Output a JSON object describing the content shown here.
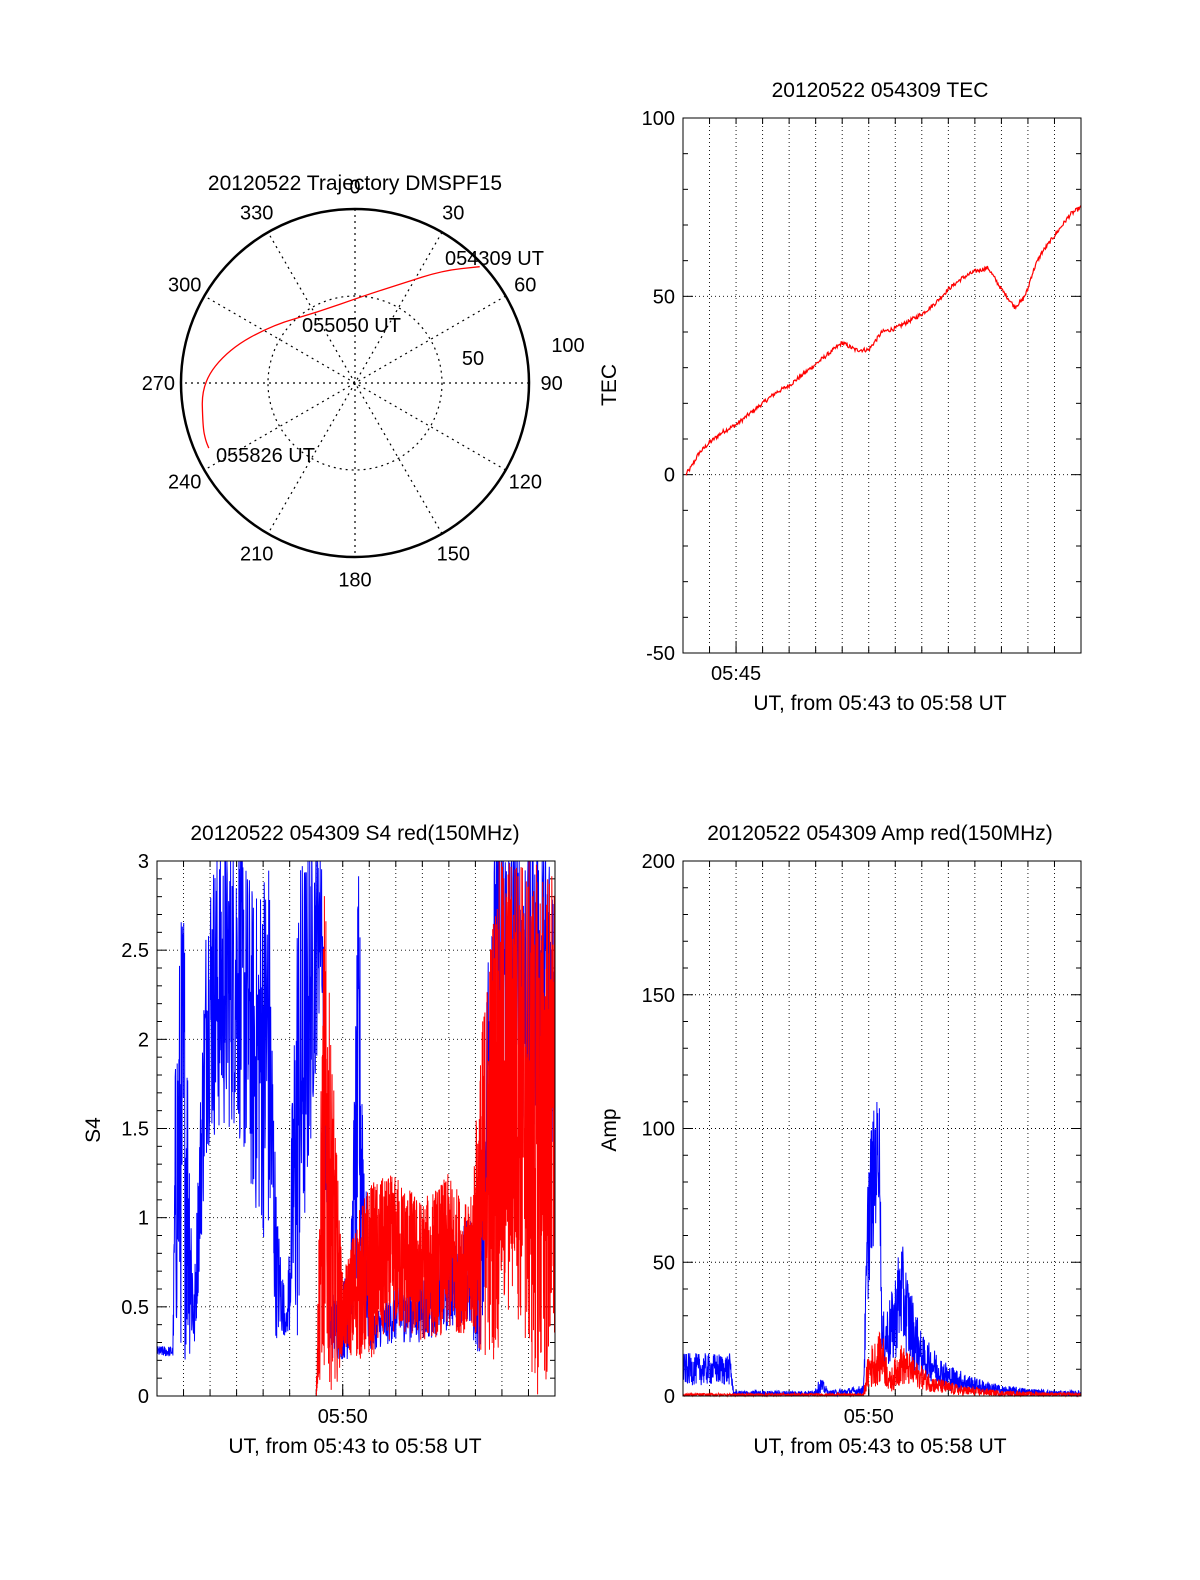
{
  "colors": {
    "red": "#ff0000",
    "blue": "#0000ff",
    "axis": "#000000",
    "grid": "#000000"
  },
  "chart_data": [
    {
      "id": "trajectory",
      "type": "polar",
      "title": "20120522 Trajectory DMSPF15",
      "azimuth_labels": [
        "0",
        "30",
        "60",
        "90",
        "120",
        "150",
        "180",
        "210",
        "240",
        "270",
        "300",
        "330"
      ],
      "radial_ticks": [
        {
          "label": "50",
          "value": 50
        },
        {
          "label": "100",
          "value": 100
        }
      ],
      "track": {
        "color": "#ff0000",
        "points": [
          {
            "az": 47,
            "r": 98
          },
          {
            "az": 38,
            "r": 82
          },
          {
            "az": 25,
            "r": 63
          },
          {
            "az": 5,
            "r": 50
          },
          {
            "az": -28,
            "r": 46
          },
          {
            "az": -55,
            "r": 58
          },
          {
            "az": -75,
            "r": 75
          },
          {
            "az": -90,
            "r": 88
          },
          {
            "az": -106,
            "r": 91
          },
          {
            "az": -111,
            "r": 92
          },
          {
            "az": -114,
            "r": 92
          }
        ]
      },
      "annotations": [
        {
          "label": "054309 UT",
          "az": 47,
          "r": 98
        },
        {
          "label": "055050 UT",
          "az": -30,
          "r": 46
        },
        {
          "label": "055826 UT",
          "az": -112,
          "r": 92
        }
      ]
    },
    {
      "id": "tec",
      "type": "line",
      "title": "20120522 054309 TEC",
      "ylabel": "TEC",
      "xlabel": "UT, from 05:43 to 05:58 UT",
      "xlim": [
        43.0,
        58.0
      ],
      "ylim": [
        -50,
        100
      ],
      "yticks": [
        -50,
        0,
        50,
        100
      ],
      "xticks": [
        {
          "label": "05:45",
          "value": 45
        }
      ],
      "series": [
        {
          "color": "#ff0000",
          "x": [
            43.1,
            43.3,
            43.6,
            44.0,
            44.5,
            45.0,
            45.5,
            46.0,
            46.5,
            47.0,
            47.5,
            48.0,
            48.5,
            49.0,
            49.5,
            50.0,
            50.5,
            51.0,
            51.5,
            52.0,
            52.5,
            53.0,
            53.5,
            54.0,
            54.5,
            55.0,
            55.5,
            55.8,
            56.0,
            56.1,
            56.3,
            56.5,
            56.7,
            57.0,
            57.3,
            57.6,
            58.0
          ],
          "y": [
            0,
            2,
            6,
            9,
            12,
            14,
            17,
            20,
            23,
            25,
            28,
            31,
            34,
            37,
            35,
            35,
            40,
            41,
            43,
            45,
            48,
            52,
            55,
            57,
            58,
            52,
            47,
            49,
            52,
            55,
            59,
            62,
            64,
            67,
            70,
            73,
            75
          ]
        }
      ]
    },
    {
      "id": "s4",
      "type": "line",
      "title": "20120522 054309 S4 red(150MHz)",
      "ylabel": "S4",
      "xlabel": "UT, from 05:43 to 05:58 UT",
      "xlim": [
        43.0,
        58.0
      ],
      "ylim": [
        0,
        3
      ],
      "yticks": [
        {
          "label": "0",
          "value": 0
        },
        {
          "label": "0.5",
          "value": 0.5
        },
        {
          "label": "1",
          "value": 1
        },
        {
          "label": "1.5",
          "value": 1.5
        },
        {
          "label": "2",
          "value": 2
        },
        {
          "label": "2.5",
          "value": 2.5
        },
        {
          "label": "3",
          "value": 3
        }
      ],
      "xticks": [
        {
          "label": "05:50",
          "value": 50
        }
      ],
      "series": [
        {
          "color": "#0000ff",
          "profile": [
            [
              43.0,
              0.25,
              0.03
            ],
            [
              43.6,
              0.25,
              0.03
            ],
            [
              43.7,
              1.2,
              0.9
            ],
            [
              44.0,
              1.6,
              1.4
            ],
            [
              44.4,
              0.4,
              0.2
            ],
            [
              44.9,
              2.2,
              0.8
            ],
            [
              46.0,
              2.4,
              0.9
            ],
            [
              46.7,
              1.9,
              0.9
            ],
            [
              47.2,
              2.0,
              1.2
            ],
            [
              47.5,
              0.7,
              0.4
            ],
            [
              47.9,
              0.4,
              0.05
            ],
            [
              48.3,
              1.6,
              1.4
            ],
            [
              48.8,
              2.3,
              0.9
            ],
            [
              49.2,
              2.8,
              0.5
            ],
            [
              49.5,
              0.4,
              0.2
            ],
            [
              49.9,
              0.4,
              0.2
            ],
            [
              50.3,
              0.5,
              0.3
            ],
            [
              50.6,
              1.8,
              1.2
            ],
            [
              51.0,
              0.35,
              0.1
            ],
            [
              52.0,
              0.45,
              0.15
            ],
            [
              53.0,
              0.5,
              0.2
            ],
            [
              53.8,
              0.6,
              0.25
            ],
            [
              54.6,
              0.7,
              0.3
            ],
            [
              55.2,
              0.6,
              0.4
            ],
            [
              55.6,
              2.4,
              1.0
            ],
            [
              56.5,
              2.3,
              1.0
            ],
            [
              57.2,
              2.3,
              0.9
            ],
            [
              58.0,
              2.3,
              0.9
            ]
          ]
        },
        {
          "color": "#ff0000",
          "profile": [
            [
              49.0,
              0.0,
              0.0
            ],
            [
              49.3,
              1.5,
              1.4
            ],
            [
              49.7,
              0.8,
              0.8
            ],
            [
              50.0,
              0.45,
              0.2
            ],
            [
              50.5,
              0.6,
              0.4
            ],
            [
              51.0,
              0.7,
              0.5
            ],
            [
              52.0,
              0.8,
              0.45
            ],
            [
              53.0,
              0.7,
              0.4
            ],
            [
              54.0,
              0.8,
              0.45
            ],
            [
              54.8,
              0.7,
              0.35
            ],
            [
              55.3,
              1.2,
              1.0
            ],
            [
              55.8,
              1.6,
              1.4
            ],
            [
              56.5,
              1.8,
              1.3
            ],
            [
              57.2,
              1.5,
              1.5
            ],
            [
              58.0,
              1.5,
              1.5
            ]
          ]
        }
      ]
    },
    {
      "id": "amp",
      "type": "line",
      "title": "20120522 054309 Amp red(150MHz)",
      "ylabel": "Amp",
      "xlabel": "UT, from 05:43 to 05:58 UT",
      "xlim": [
        43.0,
        58.0
      ],
      "ylim": [
        0,
        200
      ],
      "yticks": [
        0,
        50,
        100,
        150,
        200
      ],
      "xticks": [
        {
          "label": "05:50",
          "value": 50
        }
      ],
      "series": [
        {
          "color": "#0000ff",
          "profile": [
            [
              43.0,
              10,
              6
            ],
            [
              44.8,
              10,
              6
            ],
            [
              44.9,
              1,
              1
            ],
            [
              47.9,
              1,
              1
            ],
            [
              48.2,
              4,
              3
            ],
            [
              48.5,
              1,
              1
            ],
            [
              49.8,
              2,
              2
            ],
            [
              50.0,
              70,
              30
            ],
            [
              50.4,
              95,
              20
            ],
            [
              50.5,
              20,
              10
            ],
            [
              50.9,
              25,
              15
            ],
            [
              51.2,
              40,
              20
            ],
            [
              51.6,
              25,
              15
            ],
            [
              52.0,
              15,
              8
            ],
            [
              53.0,
              7,
              5
            ],
            [
              54.0,
              4,
              3
            ],
            [
              55.0,
              2,
              2
            ],
            [
              57.0,
              1,
              1
            ],
            [
              58.0,
              1,
              1
            ]
          ]
        },
        {
          "color": "#ff0000",
          "profile": [
            [
              43.0,
              0.5,
              0.5
            ],
            [
              49.8,
              0.5,
              0.5
            ],
            [
              50.0,
              10,
              8
            ],
            [
              50.5,
              15,
              10
            ],
            [
              50.8,
              5,
              4
            ],
            [
              51.2,
              12,
              8
            ],
            [
              51.8,
              8,
              5
            ],
            [
              52.5,
              4,
              3
            ],
            [
              53.5,
              2,
              2
            ],
            [
              55.0,
              1,
              1
            ],
            [
              58.0,
              0.5,
              0.5
            ]
          ]
        }
      ]
    }
  ]
}
